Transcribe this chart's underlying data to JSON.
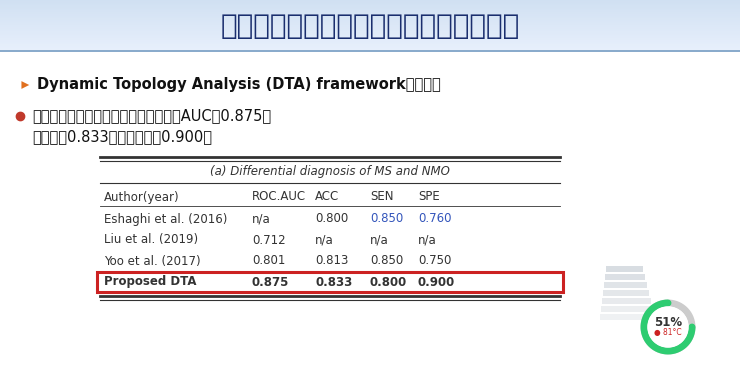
{
  "title": "宣武医院脑脱髓鞘病鉴别诊断的拓扑研究",
  "title_color": "#1a2e6e",
  "header_bg_top": "#c8d8f0",
  "header_bg_bottom": "#e8f0f8",
  "bg_color": "#ffffff",
  "bullet1_text": "Dynamic Topology Analysis (DTA) framework的优点：",
  "bullet2": "较既往报道的鉴别诊断模型具有更高的AUC（0.875）",
  "bullet2b": "准确性（0.833）和特异性（0.900）",
  "bullet_dot_color": "#c0392b",
  "arrow_color": "#e07020",
  "table_title": "(a) Differential diagnosis of MS and NMO",
  "col_header": [
    "Author(year)",
    "ROC_AUC",
    "ACC",
    "SEN",
    "SPE"
  ],
  "col_header_display": [
    "Author(year)",
    "ROC.AUC",
    "ACC",
    "SEN",
    "SPE"
  ],
  "table_rows": [
    {
      "author": "Eshaghi et al. (2016)",
      "roc": "n/a",
      "acc": "0.800",
      "sen": "0.850",
      "spe": "0.760",
      "sen_color": "#3355bb",
      "spe_color": "#3355bb",
      "roc_color": "#333333",
      "acc_color": "#333333",
      "bold": false
    },
    {
      "author": "Liu et al. (2019)",
      "roc": "0.712",
      "acc": "n/a",
      "sen": "n/a",
      "spe": "n/a",
      "sen_color": "#333333",
      "spe_color": "#333333",
      "roc_color": "#333333",
      "acc_color": "#333333",
      "bold": false
    },
    {
      "author": "Yoo et al. (2017)",
      "roc": "0.801",
      "acc": "0.813",
      "sen": "0.850",
      "spe": "0.750",
      "sen_color": "#333333",
      "spe_color": "#333333",
      "roc_color": "#333333",
      "acc_color": "#333333",
      "bold": false
    },
    {
      "author": "Proposed DTA",
      "roc": "0.875",
      "acc": "0.833",
      "sen": "0.800",
      "spe": "0.900",
      "sen_color": "#333333",
      "spe_color": "#333333",
      "roc_color": "#333333",
      "acc_color": "#333333",
      "bold": true
    }
  ],
  "proposed_box_color": "#cc2222",
  "circle_text": "51%",
  "circle_sub": "● 81°C",
  "circle_color": "#2ecc71",
  "circle_gray": "#cccccc"
}
